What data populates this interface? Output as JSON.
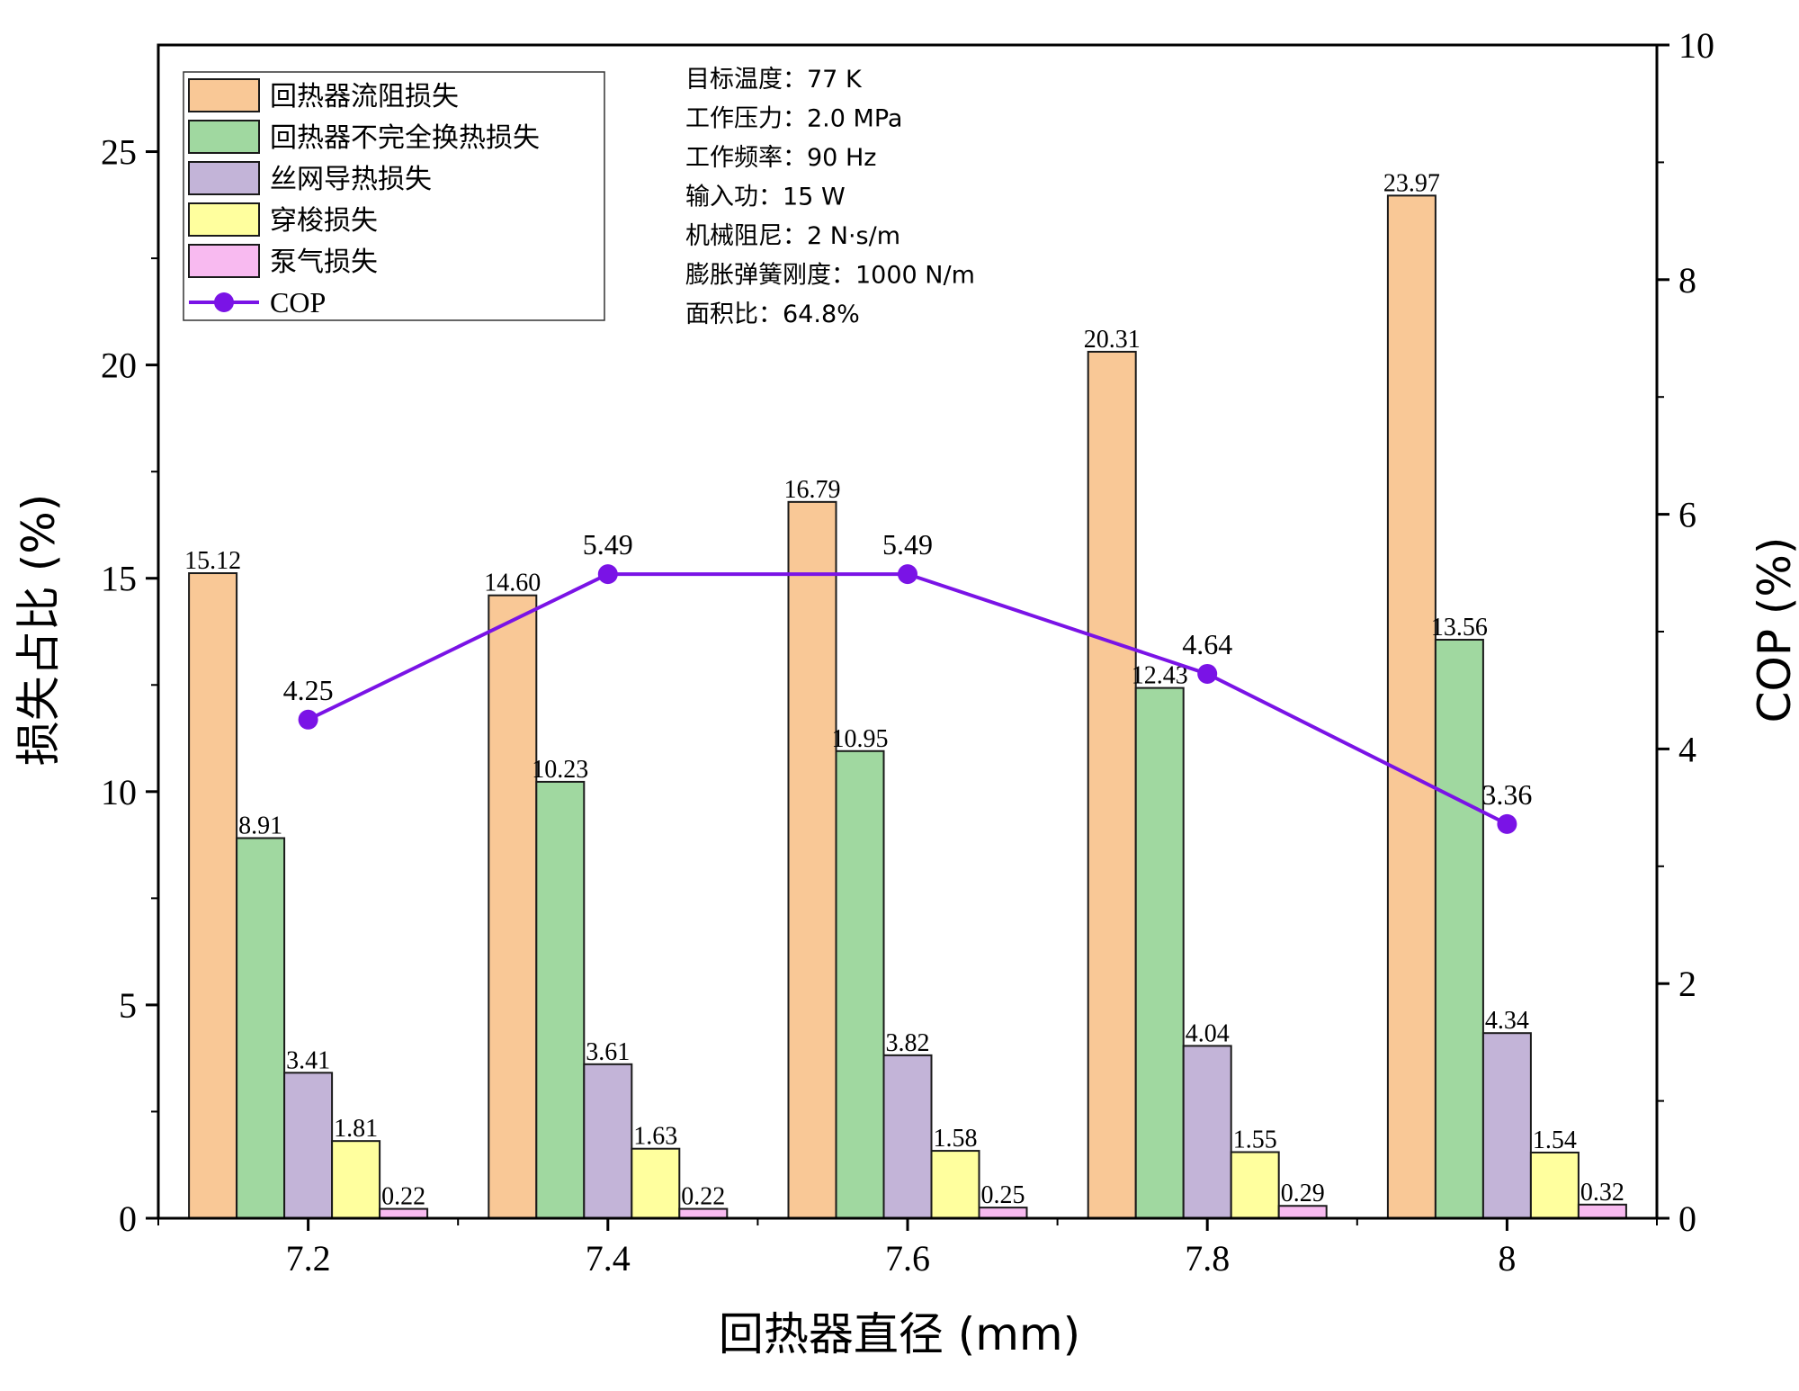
{
  "chart_data": {
    "type": "bar",
    "categories": [
      "7.2",
      "7.4",
      "7.6",
      "7.8",
      "8"
    ],
    "xlabel": "回热器直径 (mm)",
    "ylabel": "损失占比 (%)",
    "y2label": "COP (%)",
    "ylim": [
      0,
      27.5
    ],
    "yticks": [
      "0",
      "5",
      "10",
      "15",
      "20",
      "25"
    ],
    "y2lim": [
      0,
      10
    ],
    "y2ticks": [
      "0",
      "2",
      "4",
      "6",
      "8",
      "10"
    ],
    "series": [
      {
        "name": "回热器流阻损失",
        "color": "#f9c896",
        "values": [
          15.12,
          14.6,
          16.79,
          20.31,
          23.97
        ],
        "labels": [
          "15.12",
          "14.60",
          "16.79",
          "20.31",
          "23.97"
        ]
      },
      {
        "name": "回热器不完全换热损失",
        "color": "#a0d8a0",
        "values": [
          8.91,
          10.23,
          10.95,
          12.43,
          13.56
        ],
        "labels": [
          "8.91",
          "10.23",
          "10.95",
          "12.43",
          "13.56"
        ]
      },
      {
        "name": "丝网导热损失",
        "color": "#c3b4d8",
        "values": [
          3.41,
          3.61,
          3.82,
          4.04,
          4.34
        ],
        "labels": [
          "3.41",
          "3.61",
          "3.82",
          "4.04",
          "4.34"
        ]
      },
      {
        "name": "穿梭损失",
        "color": "#ffff9e",
        "values": [
          1.81,
          1.63,
          1.58,
          1.55,
          1.54
        ],
        "labels": [
          "1.81",
          "1.63",
          "1.58",
          "1.55",
          "1.54"
        ]
      },
      {
        "name": "泵气损失",
        "color": "#f8baf0",
        "values": [
          0.22,
          0.22,
          0.25,
          0.29,
          0.32
        ],
        "labels": [
          "0.22",
          "0.22",
          "0.25",
          "0.29",
          "0.32"
        ]
      }
    ],
    "line_series": {
      "name": "COP",
      "color": "#7a13e6",
      "axis": "right",
      "values": [
        4.25,
        5.49,
        5.49,
        4.64,
        3.36
      ],
      "labels": [
        "4.25",
        "5.49",
        "5.49",
        "4.64",
        "3.36"
      ]
    },
    "annotations": [
      "目标温度：77 K",
      "工作压力：2.0 MPa",
      "工作频率：90 Hz",
      "输入功：15 W",
      "机械阻尼：2 N·s/m",
      "膨胀弹簧刚度：1000 N/m",
      "面积比：64.8%"
    ],
    "legend_position": "top-left"
  }
}
